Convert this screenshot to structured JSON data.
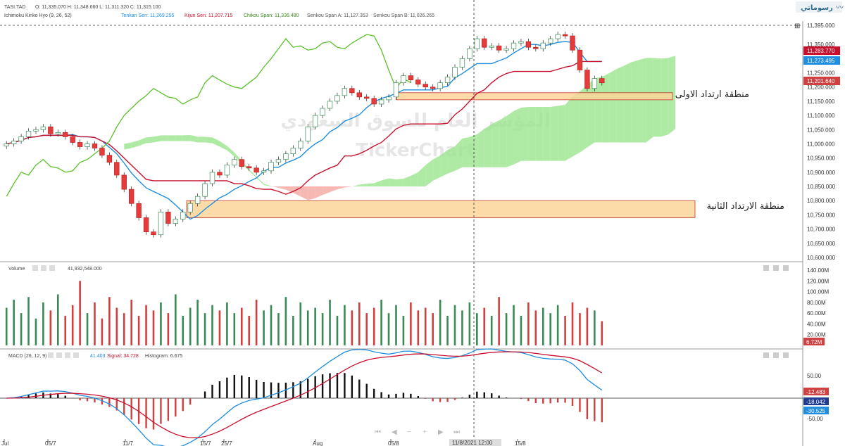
{
  "header": {
    "symbol": "TASI.TAD",
    "ohlc": "O: 11,335.070  H: 11,348.660  L: 11,311.320  C: 11,315.100",
    "indicator": "Ichimoku Kinko Hyo (9, 26, 52)",
    "tenkan": "Tenkan Sen: 11,269.255",
    "kijun": "Kijun Sen: 11,207.715",
    "chikou": "Chikou Span: 11,336.480",
    "spanA": "Senkou Span A: 11,127.353",
    "spanB": "Senkou Span B: 11,026.265"
  },
  "logo": "رسوماتي",
  "watermark": {
    "arabic": "المؤشر العام للسوق السعودي",
    "brand": "TickerChart"
  },
  "zones": {
    "first": "منطقة ارتداد الاولى",
    "second": "منطقة الارتداد الثانية"
  },
  "volume_panel": {
    "title": "Volume",
    "value": "41,932,548.000",
    "last_tag": "6.72M"
  },
  "macd_panel": {
    "title": "MACD  (26, 12, 9)",
    "macd": "41.403",
    "signal": "Signal: 34.728",
    "histogram": "Histogram: 6.675",
    "tags": [
      "-12.483",
      "-18.042",
      "-30.525"
    ]
  },
  "price_tags": [
    "11,395.000",
    "11,283.770",
    "11,273.495",
    "11,201.640"
  ],
  "x_axis": {
    "ticks": [
      "Jul",
      "05/7",
      "11/7",
      "15/7",
      "25/7",
      "Aug",
      "05/8",
      "15/8"
    ],
    "crosshair": "11/8/2021  12:00"
  },
  "colors": {
    "up": "#3a8a55",
    "down": "#d04040",
    "tenkan": "#1f8de0",
    "kijun": "#c8102e",
    "chikou": "#5ac12a",
    "cloudUp": "#9be58f",
    "cloudDown": "#f4a6a0",
    "zone": "#fbd59a"
  },
  "chart_data": [
    {
      "type": "candlestick",
      "title": "TASI.TAD",
      "ylim": [
        10600,
        11395
      ],
      "y_ticks": [
        "11,350.000",
        "11,300.000",
        "11,250.000",
        "11,200.000",
        "11,150.000",
        "11,100.000",
        "11,050.000",
        "11,000.000",
        "10,950.000",
        "10,900.000",
        "10,850.000",
        "10,800.000",
        "10,750.000",
        "10,700.000",
        "10,650.000",
        "10,600.000"
      ],
      "close": [
        11000,
        11010,
        11025,
        11045,
        11050,
        11060,
        11035,
        11040,
        11025,
        11005,
        10990,
        11000,
        10985,
        10960,
        10935,
        10890,
        10840,
        10790,
        10740,
        10690,
        10680,
        10760,
        10720,
        10735,
        10760,
        10790,
        10815,
        10860,
        10900,
        10890,
        10925,
        10945,
        10920,
        10915,
        10900,
        10905,
        10935,
        10945,
        10965,
        10985,
        11010,
        11060,
        11100,
        11125,
        11150,
        11170,
        11195,
        11180,
        11165,
        11160,
        11140,
        11155,
        11165,
        11215,
        11240,
        11225,
        11210,
        11200,
        11195,
        11215,
        11235,
        11270,
        11300,
        11335,
        11370,
        11340,
        11345,
        11330,
        11335,
        11355,
        11360,
        11340,
        11335,
        11355,
        11370,
        11385,
        11380,
        11330,
        11260,
        11195,
        11230,
        11215
      ],
      "ichimoku": {
        "tenkan_last": 11269.255,
        "kijun_last": 11207.715,
        "chikou_last": 11336.48,
        "senkou_a_last": 11127.353,
        "senkou_b_last": 11026.265
      },
      "zones": [
        {
          "label": "منطقة ارتداد الاولى",
          "from": 11165,
          "to": 11180
        },
        {
          "label": "منطقة الارتداد الثانية",
          "from": 10760,
          "to": 10800
        }
      ]
    },
    {
      "type": "bar",
      "title": "Volume",
      "ylim": [
        0,
        140
      ],
      "y_ticks": [
        "140.00M",
        "120.00M",
        "100.00M",
        "80.00M",
        "60.00M",
        "40.00M",
        "20.00M"
      ],
      "values": [
        70,
        85,
        60,
        90,
        50,
        80,
        65,
        95,
        55,
        75,
        120,
        60,
        80,
        50,
        90,
        70,
        60,
        85,
        55,
        75,
        65,
        80,
        60,
        95,
        55,
        70,
        85,
        60,
        75,
        65,
        80,
        60,
        70,
        55,
        85,
        65,
        75,
        60,
        90,
        55,
        80,
        65,
        70,
        60,
        85,
        55,
        75,
        65,
        80,
        60,
        70,
        85,
        60,
        75,
        55,
        80,
        65,
        70,
        60,
        85,
        55,
        75,
        65,
        80,
        60,
        70,
        55,
        90,
        60,
        75,
        55,
        80,
        65,
        70,
        60,
        75,
        55,
        80,
        60,
        70,
        65,
        45
      ],
      "last": "6.72M"
    },
    {
      "type": "line",
      "title": "MACD (26, 12, 9)",
      "ylim": [
        -50,
        50
      ],
      "y_ticks": [
        "50.00",
        "-50.00"
      ],
      "series": [
        {
          "name": "MACD",
          "last": 41.403
        },
        {
          "name": "Signal",
          "last": 34.728
        },
        {
          "name": "Histogram",
          "last": 6.675
        }
      ]
    }
  ]
}
